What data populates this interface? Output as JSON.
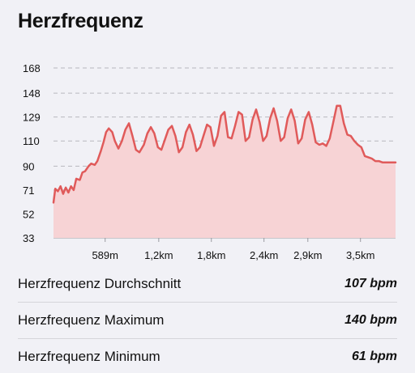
{
  "header": {
    "title": "Herzfrequenz"
  },
  "chart_data": {
    "type": "area",
    "title": "",
    "xlabel": "",
    "ylabel": "",
    "y_ticks": [
      33,
      52,
      71,
      90,
      110,
      129,
      148,
      168
    ],
    "x_tick_values": [
      0.589,
      1.2,
      1.8,
      2.4,
      2.9,
      3.5
    ],
    "x_tick_labels": [
      "589m",
      "1,2km",
      "1,8km",
      "2,4km",
      "2,9km",
      "3,5km"
    ],
    "xlim": [
      0,
      3.9
    ],
    "ylim": [
      33,
      168
    ],
    "grid": true,
    "colors": {
      "line": "#e05a5a",
      "fill": "#f7d3d5",
      "grid": "#b8b8be"
    },
    "series": [
      {
        "x": [
          0.0,
          0.02,
          0.05,
          0.08,
          0.11,
          0.14,
          0.17,
          0.2,
          0.23,
          0.26,
          0.3,
          0.33,
          0.36,
          0.4,
          0.43,
          0.47,
          0.5,
          0.54,
          0.57,
          0.6,
          0.63,
          0.67,
          0.7,
          0.74,
          0.78,
          0.82,
          0.86,
          0.9,
          0.94,
          0.98,
          1.03,
          1.07,
          1.11,
          1.15,
          1.19,
          1.23,
          1.27,
          1.31,
          1.35,
          1.39,
          1.43,
          1.47,
          1.51,
          1.55,
          1.59,
          1.63,
          1.67,
          1.71,
          1.75,
          1.79,
          1.83,
          1.87,
          1.91,
          1.95,
          1.99,
          2.03,
          2.07,
          2.11,
          2.15,
          2.19,
          2.23,
          2.27,
          2.31,
          2.35,
          2.39,
          2.43,
          2.47,
          2.51,
          2.55,
          2.59,
          2.63,
          2.67,
          2.71,
          2.75,
          2.79,
          2.83,
          2.87,
          2.91,
          2.95,
          2.99,
          3.03,
          3.07,
          3.11,
          3.15,
          3.19,
          3.23,
          3.27,
          3.31,
          3.35,
          3.39,
          3.43,
          3.47,
          3.51,
          3.55,
          3.59,
          3.63,
          3.67,
          3.71,
          3.75,
          3.79,
          3.83,
          3.87,
          3.9
        ],
        "y": [
          61,
          72,
          70,
          74,
          68,
          73,
          69,
          74,
          71,
          80,
          79,
          85,
          86,
          90,
          92,
          91,
          94,
          102,
          109,
          117,
          120,
          117,
          110,
          104,
          110,
          119,
          124,
          114,
          103,
          101,
          107,
          116,
          121,
          116,
          105,
          103,
          111,
          119,
          122,
          114,
          101,
          105,
          117,
          123,
          115,
          102,
          105,
          114,
          123,
          121,
          106,
          114,
          130,
          133,
          113,
          112,
          122,
          133,
          131,
          110,
          113,
          127,
          135,
          125,
          110,
          114,
          128,
          136,
          126,
          110,
          113,
          128,
          135,
          126,
          108,
          112,
          127,
          133,
          123,
          109,
          107,
          108,
          106,
          112,
          125,
          138,
          138,
          124,
          115,
          114,
          110,
          107,
          105,
          98,
          97,
          96,
          94,
          94,
          93,
          93,
          93,
          93,
          93
        ]
      }
    ]
  },
  "stats": [
    {
      "label": "Herzfrequenz Durchschnitt",
      "value": "107 bpm"
    },
    {
      "label": "Herzfrequenz Maximum",
      "value": "140 bpm"
    },
    {
      "label": "Herzfrequenz Minimum",
      "value": "61 bpm"
    }
  ]
}
